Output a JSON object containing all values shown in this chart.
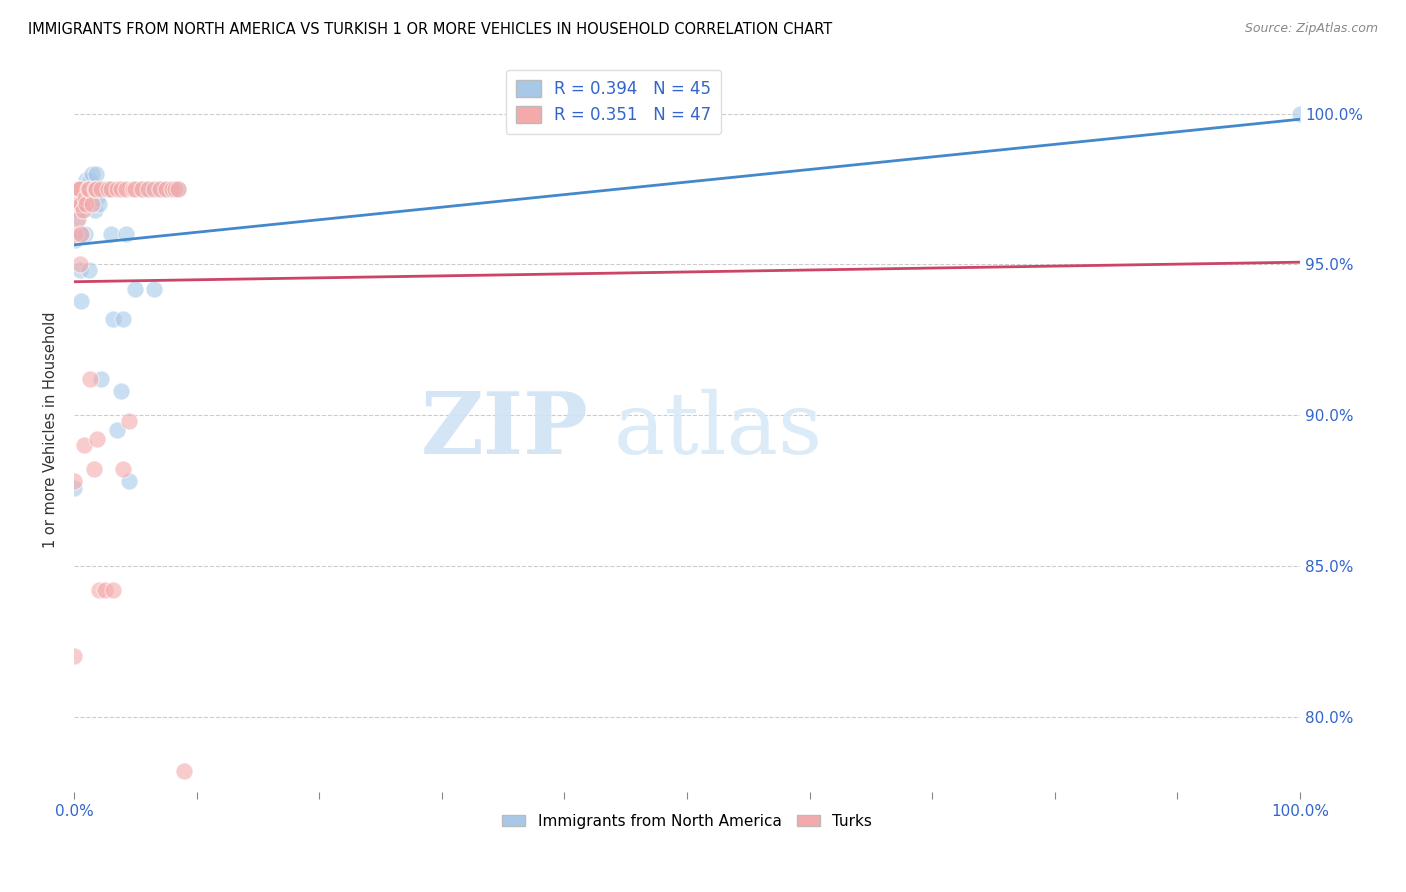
{
  "title": "IMMIGRANTS FROM NORTH AMERICA VS TURKISH 1 OR MORE VEHICLES IN HOUSEHOLD CORRELATION CHART",
  "source": "Source: ZipAtlas.com",
  "ylabel": "1 or more Vehicles in Household",
  "ytick_labels": [
    "80.0%",
    "85.0%",
    "90.0%",
    "95.0%",
    "100.0%"
  ],
  "ytick_values": [
    0.8,
    0.85,
    0.9,
    0.95,
    1.0
  ],
  "legend_blue_label": "Immigrants from North America",
  "legend_pink_label": "Turks",
  "R_blue": 0.394,
  "N_blue": 45,
  "R_pink": 0.351,
  "N_pink": 47,
  "blue_color": "#a8c8e8",
  "pink_color": "#f4aaaa",
  "line_blue_color": "#4488cc",
  "line_pink_color": "#cc4466",
  "watermark_zip": "ZIP",
  "watermark_atlas": "atlas",
  "xlim": [
    0.0,
    1.0
  ],
  "ylim": [
    0.775,
    1.015
  ],
  "blue_x": [
    0.0,
    0.001,
    0.002,
    0.002,
    0.003,
    0.004,
    0.004,
    0.005,
    0.005,
    0.006,
    0.006,
    0.007,
    0.008,
    0.009,
    0.009,
    0.01,
    0.011,
    0.012,
    0.013,
    0.014,
    0.015,
    0.016,
    0.017,
    0.018,
    0.019,
    0.02,
    0.022,
    0.025,
    0.028,
    0.03,
    0.032,
    0.035,
    0.038,
    0.04,
    0.042,
    0.045,
    0.05,
    0.055,
    0.06,
    0.065,
    0.07,
    0.075,
    0.08,
    0.085,
    1.0
  ],
  "blue_y": [
    0.876,
    0.958,
    0.975,
    0.965,
    0.97,
    0.975,
    0.968,
    0.96,
    0.948,
    0.938,
    0.96,
    0.968,
    0.975,
    0.975,
    0.96,
    0.978,
    0.975,
    0.948,
    0.978,
    0.975,
    0.98,
    0.975,
    0.968,
    0.98,
    0.972,
    0.97,
    0.912,
    0.975,
    0.975,
    0.96,
    0.932,
    0.895,
    0.908,
    0.932,
    0.96,
    0.878,
    0.942,
    0.975,
    0.975,
    0.942,
    0.975,
    0.975,
    0.975,
    0.975,
    1.0
  ],
  "pink_x": [
    0.0,
    0.0,
    0.001,
    0.001,
    0.002,
    0.003,
    0.003,
    0.004,
    0.004,
    0.005,
    0.005,
    0.006,
    0.006,
    0.007,
    0.008,
    0.009,
    0.01,
    0.011,
    0.012,
    0.013,
    0.015,
    0.016,
    0.017,
    0.018,
    0.019,
    0.02,
    0.022,
    0.025,
    0.028,
    0.03,
    0.032,
    0.035,
    0.038,
    0.04,
    0.042,
    0.045,
    0.048,
    0.05,
    0.055,
    0.06,
    0.065,
    0.07,
    0.075,
    0.08,
    0.082,
    0.085,
    0.09
  ],
  "pink_y": [
    0.82,
    0.878,
    0.972,
    0.96,
    0.975,
    0.975,
    0.965,
    0.975,
    0.97,
    0.975,
    0.95,
    0.96,
    0.97,
    0.968,
    0.89,
    0.972,
    0.97,
    0.975,
    0.975,
    0.912,
    0.97,
    0.882,
    0.975,
    0.975,
    0.892,
    0.842,
    0.975,
    0.842,
    0.975,
    0.975,
    0.842,
    0.975,
    0.975,
    0.882,
    0.975,
    0.898,
    0.975,
    0.975,
    0.975,
    0.975,
    0.975,
    0.975,
    0.975,
    0.975,
    0.975,
    0.975,
    0.782
  ]
}
